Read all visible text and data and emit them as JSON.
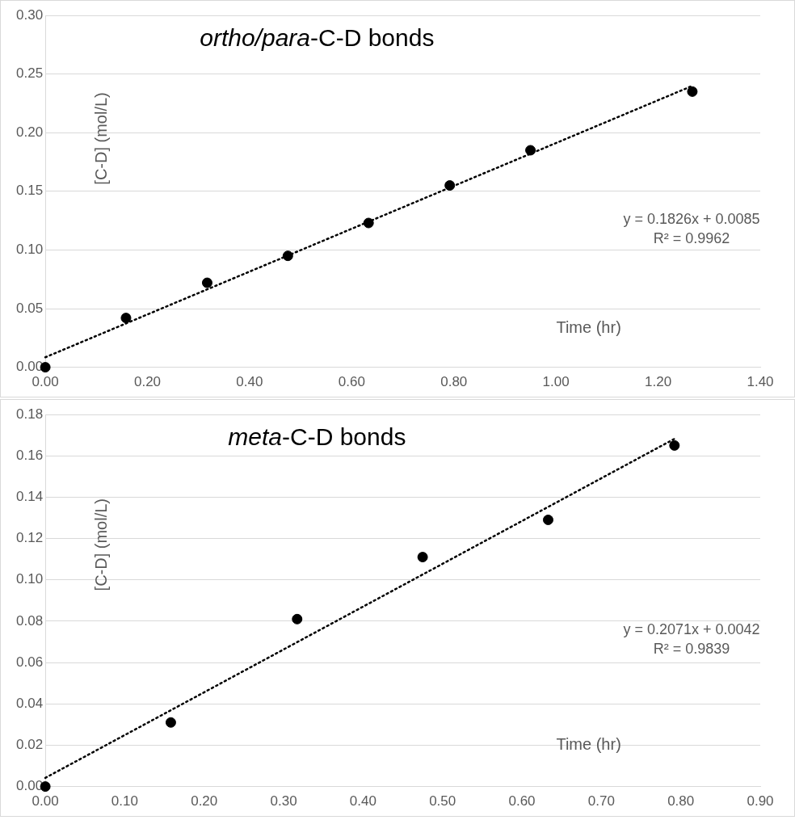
{
  "chart_data": [
    {
      "type": "scatter",
      "title": "ortho/para-C-D bonds",
      "xlabel": "Time (hr)",
      "ylabel": "[C-D] (mol/L)",
      "x": [
        0,
        0.158,
        0.317,
        0.475,
        0.633,
        0.792,
        0.95,
        1.267
      ],
      "series": [
        {
          "color": "#000000",
          "values": [
            0,
            0.042,
            0.072,
            0.095,
            0.123,
            0.155,
            0.185,
            0.235
          ]
        },
        {
          "type": "line",
          "color": "#000000",
          "x": [
            0,
            1.267
          ],
          "values": [
            0.0085,
            0.2399
          ],
          "marker": "none",
          "line_style": "dotted"
        }
      ],
      "xlim": [
        0,
        1.4
      ],
      "xticks": [
        {
          "value": 0,
          "label": "0.00"
        },
        {
          "value": 0.2,
          "label": "0.20"
        },
        {
          "value": 0.4,
          "label": "0.40"
        },
        {
          "value": 0.6,
          "label": "0.60"
        },
        {
          "value": 0.8,
          "label": "0.80"
        },
        {
          "value": 1.0,
          "label": "1.00"
        },
        {
          "value": 1.2,
          "label": "1.20"
        },
        {
          "value": 1.4,
          "label": "1.40"
        }
      ],
      "ylim": [
        0,
        0.3
      ],
      "yticks": [
        {
          "value": 0,
          "label": "0.00"
        },
        {
          "value": 0.05,
          "label": "0.05"
        },
        {
          "value": 0.1,
          "label": "0.10"
        },
        {
          "value": 0.15,
          "label": "0.15"
        },
        {
          "value": 0.2,
          "label": "0.20"
        },
        {
          "value": 0.25,
          "label": "0.25"
        },
        {
          "value": 0.3,
          "label": "0.30"
        }
      ],
      "annotations": [
        "y = 0.1826x + 0.0085",
        "R² = 0.9962"
      ],
      "grid": "y",
      "legend": false,
      "marker": "circle"
    },
    {
      "type": "scatter",
      "title": "meta-C-D bonds",
      "xlabel": "Time (hr)",
      "ylabel": "[C-D] (mol/L)",
      "x": [
        0,
        0.158,
        0.317,
        0.475,
        0.633,
        0.792
      ],
      "series": [
        {
          "color": "#000000",
          "values": [
            0,
            0.031,
            0.081,
            0.111,
            0.129,
            0.165
          ]
        },
        {
          "type": "line",
          "color": "#000000",
          "x": [
            0,
            0.792
          ],
          "values": [
            0.0042,
            0.1682
          ],
          "marker": "none",
          "line_style": "dotted"
        }
      ],
      "xlim": [
        0,
        0.9
      ],
      "xticks": [
        {
          "value": 0,
          "label": "0.00"
        },
        {
          "value": 0.1,
          "label": "0.10"
        },
        {
          "value": 0.2,
          "label": "0.20"
        },
        {
          "value": 0.3,
          "label": "0.30"
        },
        {
          "value": 0.4,
          "label": "0.40"
        },
        {
          "value": 0.5,
          "label": "0.50"
        },
        {
          "value": 0.6,
          "label": "0.60"
        },
        {
          "value": 0.7,
          "label": "0.70"
        },
        {
          "value": 0.8,
          "label": "0.80"
        },
        {
          "value": 0.9,
          "label": "0.90"
        }
      ],
      "ylim": [
        0,
        0.18
      ],
      "yticks": [
        {
          "value": 0,
          "label": "0.00"
        },
        {
          "value": 0.02,
          "label": "0.02"
        },
        {
          "value": 0.04,
          "label": "0.04"
        },
        {
          "value": 0.06,
          "label": "0.06"
        },
        {
          "value": 0.08,
          "label": "0.08"
        },
        {
          "value": 0.1,
          "label": "0.10"
        },
        {
          "value": 0.12,
          "label": "0.12"
        },
        {
          "value": 0.14,
          "label": "0.14"
        },
        {
          "value": 0.16,
          "label": "0.16"
        },
        {
          "value": 0.18,
          "label": "0.18"
        }
      ],
      "annotations": [
        "y = 0.2071x + 0.0042",
        "R² = 0.9839"
      ],
      "grid": "y",
      "legend": false,
      "marker": "circle"
    }
  ]
}
